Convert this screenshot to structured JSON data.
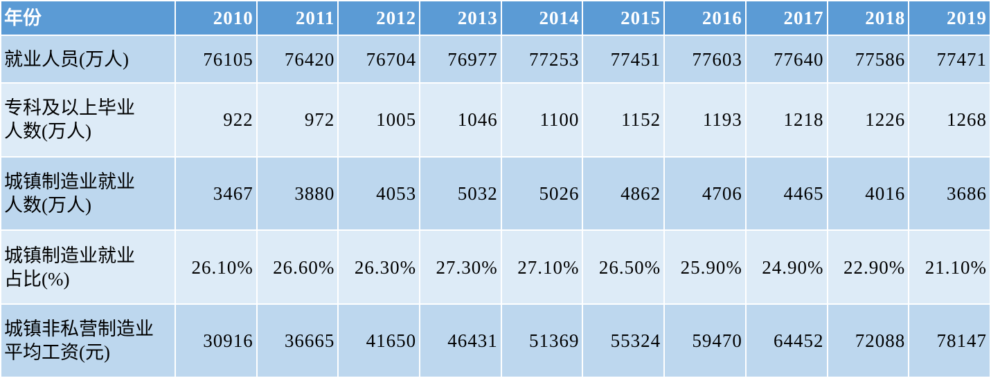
{
  "table": {
    "header": [
      "年份",
      "2010",
      "2011",
      "2012",
      "2013",
      "2014",
      "2015",
      "2016",
      "2017",
      "2018",
      "2019"
    ],
    "rows": [
      {
        "label": [
          "就业人员(万人)"
        ],
        "values": [
          "76105",
          "76420",
          "76704",
          "76977",
          "77253",
          "77451",
          "77603",
          "77640",
          "77586",
          "77471"
        ]
      },
      {
        "label": [
          "专科及以上毕业",
          "人数(万人)"
        ],
        "values": [
          "922",
          "972",
          "1005",
          "1046",
          "1100",
          "1152",
          "1193",
          "1218",
          "1226",
          "1268"
        ]
      },
      {
        "label": [
          "城镇制造业就业",
          "人数(万人)"
        ],
        "values": [
          "3467",
          "3880",
          "4053",
          "5032",
          "5026",
          "4862",
          "4706",
          "4465",
          "4016",
          "3686"
        ]
      },
      {
        "label": [
          "城镇制造业就业",
          "占比(%)"
        ],
        "values": [
          "26.10%",
          "26.60%",
          "26.30%",
          "27.30%",
          "27.10%",
          "26.50%",
          "25.90%",
          "24.90%",
          "22.90%",
          "21.10%"
        ]
      },
      {
        "label": [
          "城镇非私营制造业",
          "平均工资(元)"
        ],
        "values": [
          "30916",
          "36665",
          "41650",
          "46431",
          "51369",
          "55324",
          "59470",
          "64452",
          "72088",
          "78147"
        ]
      }
    ]
  }
}
